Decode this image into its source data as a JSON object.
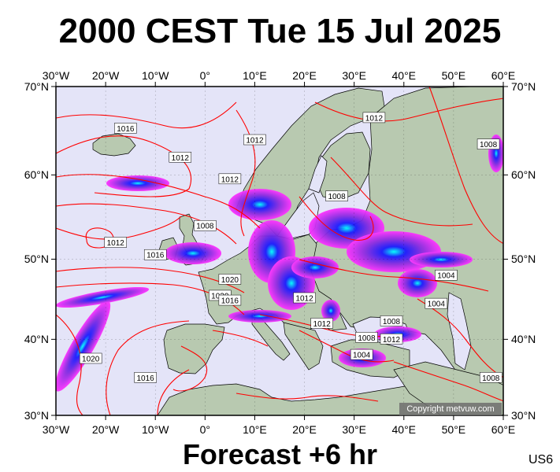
{
  "title": "2000 CEST Tue 15 Jul 2025",
  "subtitle": "Forecast +6 hr",
  "corner_code": "US6",
  "copyright": "Copyright metvuw.com",
  "colors": {
    "sea": "#e4e4f8",
    "land": "#b8c9b0",
    "isobar": "#ff0000",
    "rain_light": "#ff33ff",
    "rain_mid": "#8a2be2",
    "rain_heavy": "#1a1aff",
    "rain_extreme": "#00ffff"
  },
  "longitude_ticks": [
    {
      "lon": -30,
      "label": "30°W"
    },
    {
      "lon": -20,
      "label": "20°W"
    },
    {
      "lon": -10,
      "label": "10°W"
    },
    {
      "lon": 0,
      "label": "0°"
    },
    {
      "lon": 10,
      "label": "10°E"
    },
    {
      "lon": 20,
      "label": "20°E"
    },
    {
      "lon": 30,
      "label": "30°E"
    },
    {
      "lon": 40,
      "label": "40°E"
    },
    {
      "lon": 50,
      "label": "50°E"
    },
    {
      "lon": 60,
      "label": "60°E"
    }
  ],
  "latitude_ticks": [
    {
      "lat": 70,
      "label": "70°N"
    },
    {
      "lat": 60,
      "label": "60°N"
    },
    {
      "lat": 50,
      "label": "50°N"
    },
    {
      "lat": 40,
      "label": "40°N"
    },
    {
      "lat": 30,
      "label": "30°N"
    }
  ],
  "isobar_labels": [
    {
      "text": "1016",
      "lon": -16,
      "lat": 65.3
    },
    {
      "text": "1012",
      "lon": 34,
      "lat": 66.5
    },
    {
      "text": "1008",
      "lon": 57,
      "lat": 63.5
    },
    {
      "text": "1012",
      "lon": 10,
      "lat": 64.0
    },
    {
      "text": "1012",
      "lon": -5,
      "lat": 62.0
    },
    {
      "text": "1012",
      "lon": 5,
      "lat": 59.5
    },
    {
      "text": "1008",
      "lon": 26.5,
      "lat": 57.5
    },
    {
      "text": "1008",
      "lon": 0,
      "lat": 54.0
    },
    {
      "text": "1012",
      "lon": -18,
      "lat": 52.0
    },
    {
      "text": "1016",
      "lon": -10,
      "lat": 50.5
    },
    {
      "text": "1020",
      "lon": 5,
      "lat": 47.5
    },
    {
      "text": "1020",
      "lon": 3,
      "lat": 45.5
    },
    {
      "text": "1016",
      "lon": 5,
      "lat": 44.9
    },
    {
      "text": "1012",
      "lon": 20,
      "lat": 45.2
    },
    {
      "text": "1012",
      "lon": 23.5,
      "lat": 42.0
    },
    {
      "text": "1004",
      "lon": 48.5,
      "lat": 48.0
    },
    {
      "text": "1004",
      "lon": 46.5,
      "lat": 44.5
    },
    {
      "text": "1008",
      "lon": 37.5,
      "lat": 42.3
    },
    {
      "text": "1008",
      "lon": 32.5,
      "lat": 40.2
    },
    {
      "text": "1012",
      "lon": 37.5,
      "lat": 40.0
    },
    {
      "text": "1004",
      "lon": 31.5,
      "lat": 38.0
    },
    {
      "text": "1020",
      "lon": -23,
      "lat": 37.5
    },
    {
      "text": "1016",
      "lon": -12,
      "lat": 35.0
    },
    {
      "text": "1008",
      "lon": 57.5,
      "lat": 35.0
    }
  ]
}
